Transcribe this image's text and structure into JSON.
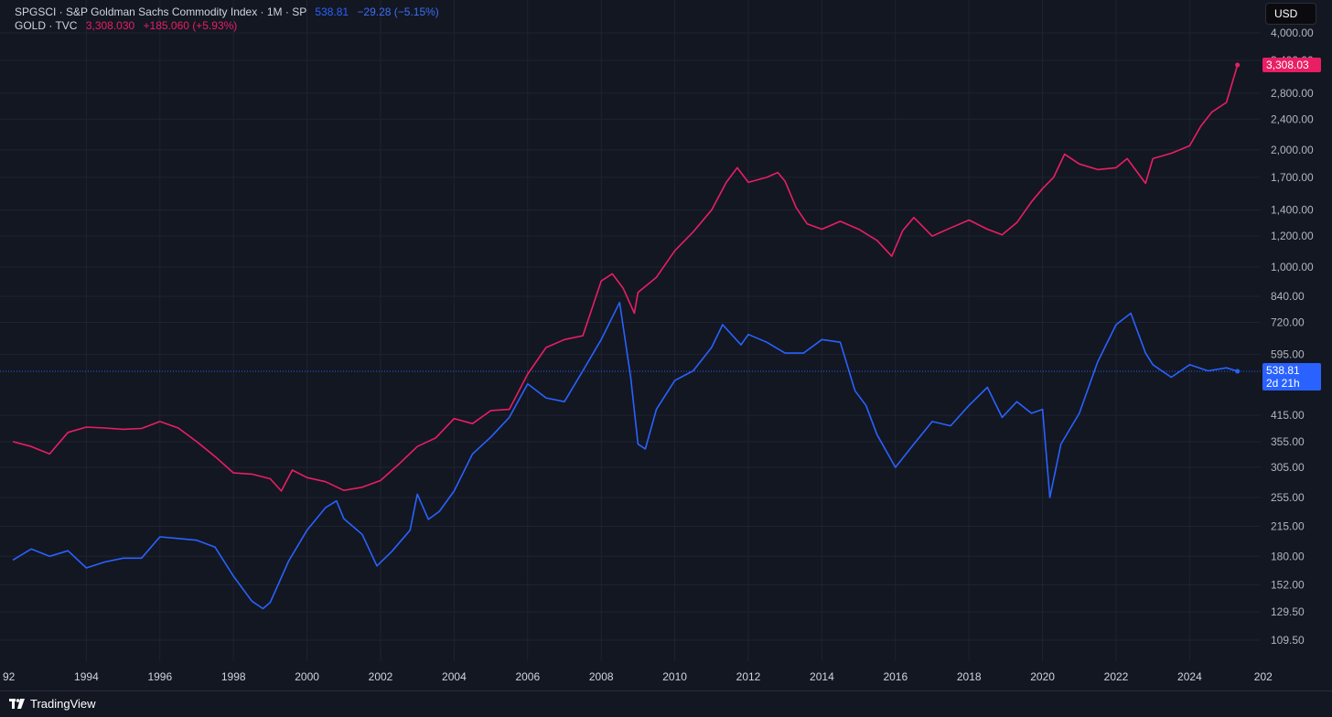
{
  "legend": {
    "primary": {
      "symbol": "SPGSCI · S&P Goldman Sachs Commodity Index · 1M · SP",
      "value": "538.81",
      "change": "−29.28 (−5.15%)",
      "color": "#2962ff"
    },
    "secondary": {
      "symbol": "GOLD · TVC",
      "value": "3,308.030",
      "change": "+185.060 (+5.93%)",
      "color": "#e91e63"
    }
  },
  "currency_button": "USD",
  "footer": {
    "brand": "TradingView",
    "logo_icon": "tradingview-logo-icon"
  },
  "chart_data": {
    "type": "line",
    "scale": "log",
    "grid": true,
    "x_ticks": [
      "92",
      "1994",
      "1996",
      "1998",
      "2000",
      "2002",
      "2004",
      "2006",
      "2008",
      "2010",
      "2012",
      "2014",
      "2016",
      "2018",
      "2020",
      "2022",
      "2024",
      "202"
    ],
    "y_ticks": [
      "4,000.00",
      "3,400.00",
      "2,800.00",
      "2,400.00",
      "2,000.00",
      "1,700.00",
      "1,400.00",
      "1,200.00",
      "1,000.00",
      "840.00",
      "720.00",
      "595.00",
      "415.00",
      "355.00",
      "305.00",
      "255.00",
      "215.00",
      "180.00",
      "152.00",
      "129.50",
      "109.50"
    ],
    "price_labels": [
      {
        "series": "GOLD",
        "text": "3,308.03",
        "value": 3308.03,
        "color": "#e91e63"
      },
      {
        "series": "SPGSCI",
        "text": "538.81",
        "sub": "2d 21h",
        "value": 538.81,
        "color": "#2962ff"
      }
    ],
    "series": [
      {
        "name": "GOLD",
        "color": "#e91e63",
        "x": [
          1992.0,
          1992.5,
          1993.0,
          1993.5,
          1994.0,
          1994.5,
          1995.0,
          1995.5,
          1996.0,
          1996.5,
          1997.0,
          1997.5,
          1998.0,
          1998.5,
          1999.0,
          1999.3,
          1999.6,
          2000.0,
          2000.5,
          2001.0,
          2001.5,
          2002.0,
          2002.5,
          2003.0,
          2003.5,
          2004.0,
          2004.5,
          2005.0,
          2005.5,
          2006.0,
          2006.5,
          2007.0,
          2007.5,
          2008.0,
          2008.3,
          2008.6,
          2008.9,
          2009.0,
          2009.5,
          2010.0,
          2010.5,
          2011.0,
          2011.4,
          2011.7,
          2012.0,
          2012.5,
          2012.8,
          2013.0,
          2013.3,
          2013.6,
          2014.0,
          2014.5,
          2015.0,
          2015.5,
          2015.9,
          2016.2,
          2016.5,
          2017.0,
          2017.5,
          2018.0,
          2018.5,
          2018.9,
          2019.3,
          2019.7,
          2020.0,
          2020.3,
          2020.6,
          2021.0,
          2021.5,
          2022.0,
          2022.3,
          2022.8,
          2023.0,
          2023.5,
          2024.0,
          2024.3,
          2024.6,
          2025.0,
          2025.3
        ],
        "y": [
          355,
          345,
          330,
          375,
          387,
          385,
          382,
          384,
          400,
          385,
          355,
          325,
          295,
          293,
          285,
          265,
          300,
          287,
          280,
          266,
          271,
          282,
          311,
          345,
          363,
          407,
          395,
          427,
          430,
          530,
          620,
          650,
          665,
          920,
          960,
          880,
          760,
          860,
          940,
          1100,
          1230,
          1400,
          1650,
          1800,
          1650,
          1700,
          1750,
          1660,
          1420,
          1290,
          1250,
          1310,
          1250,
          1170,
          1065,
          1240,
          1340,
          1200,
          1260,
          1320,
          1250,
          1210,
          1300,
          1470,
          1590,
          1700,
          1950,
          1840,
          1780,
          1800,
          1900,
          1640,
          1900,
          1960,
          2050,
          2300,
          2500,
          2650,
          3308
        ]
      },
      {
        "name": "SPGSCI",
        "color": "#2962ff",
        "x": [
          1992.0,
          1992.5,
          1993.0,
          1993.5,
          1994.0,
          1994.5,
          1995.0,
          1995.5,
          1996.0,
          1996.5,
          1997.0,
          1997.5,
          1998.0,
          1998.5,
          1998.8,
          1999.0,
          1999.5,
          2000.0,
          2000.5,
          2000.8,
          2001.0,
          2001.5,
          2001.9,
          2002.3,
          2002.8,
          2003.0,
          2003.3,
          2003.6,
          2004.0,
          2004.5,
          2005.0,
          2005.5,
          2006.0,
          2006.5,
          2007.0,
          2007.5,
          2008.0,
          2008.5,
          2008.8,
          2009.0,
          2009.2,
          2009.5,
          2010.0,
          2010.5,
          2011.0,
          2011.3,
          2011.8,
          2012.0,
          2012.5,
          2013.0,
          2013.5,
          2014.0,
          2014.5,
          2014.9,
          2015.2,
          2015.5,
          2016.0,
          2016.5,
          2017.0,
          2017.5,
          2018.0,
          2018.5,
          2018.9,
          2019.3,
          2019.7,
          2020.0,
          2020.2,
          2020.5,
          2021.0,
          2021.5,
          2022.0,
          2022.4,
          2022.8,
          2023.0,
          2023.5,
          2024.0,
          2024.5,
          2025.0,
          2025.3
        ],
        "y": [
          176,
          188,
          180,
          186,
          168,
          174,
          178,
          178,
          202,
          200,
          198,
          190,
          160,
          138,
          132,
          137,
          175,
          210,
          240,
          250,
          225,
          205,
          170,
          185,
          210,
          260,
          224,
          235,
          265,
          330,
          365,
          410,
          500,
          460,
          450,
          540,
          650,
          810,
          520,
          350,
          340,
          430,
          510,
          540,
          620,
          710,
          630,
          670,
          640,
          600,
          600,
          650,
          640,
          480,
          440,
          370,
          305,
          350,
          400,
          390,
          440,
          490,
          410,
          450,
          420,
          430,
          255,
          350,
          420,
          570,
          710,
          760,
          600,
          560,
          520,
          560,
          540,
          550,
          538.81
        ]
      }
    ]
  }
}
